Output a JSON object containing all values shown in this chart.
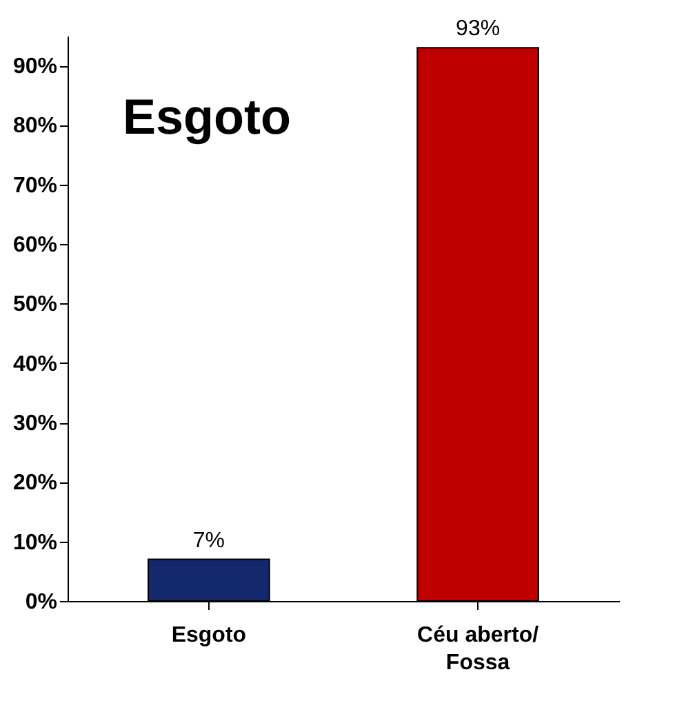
{
  "chart_data": {
    "type": "bar",
    "title": "Esgoto",
    "categories": [
      "Esgoto",
      "Céu aberto/ Fossa"
    ],
    "values": [
      7,
      93
    ],
    "colors": [
      "#14286e",
      "#c00000"
    ],
    "value_labels": [
      "7%",
      "93%"
    ],
    "ylim": [
      0,
      95
    ],
    "yticks": [
      {
        "value": 0,
        "label": "0%"
      },
      {
        "value": 10,
        "label": "10%"
      },
      {
        "value": 20,
        "label": "20%"
      },
      {
        "value": 30,
        "label": "30%"
      },
      {
        "value": 40,
        "label": "40%"
      },
      {
        "value": 50,
        "label": "50%"
      },
      {
        "value": 60,
        "label": "60%"
      },
      {
        "value": 70,
        "label": "70%"
      },
      {
        "value": 80,
        "label": "80%"
      },
      {
        "value": 90,
        "label": "90%"
      }
    ],
    "grid": false
  }
}
